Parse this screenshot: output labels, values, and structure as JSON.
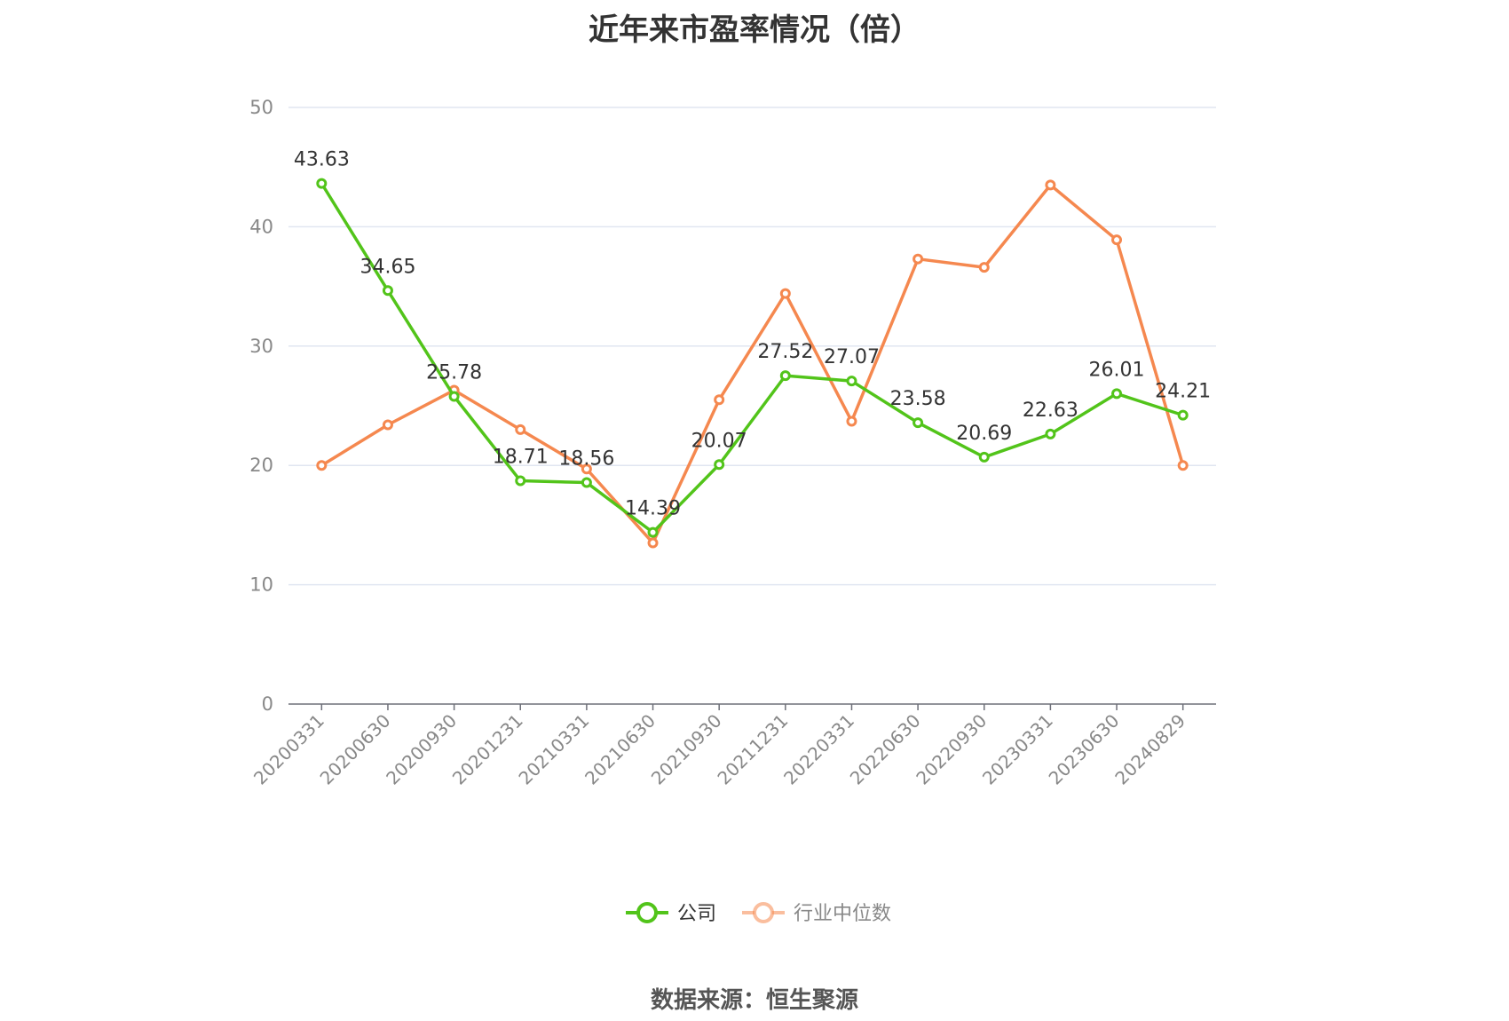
{
  "title": "近年来市盈率情况（倍）",
  "source": "数据来源：恒生聚源",
  "chart_data": {
    "type": "line",
    "categories": [
      "20200331",
      "20200630",
      "20200930",
      "20201231",
      "20210331",
      "20210630",
      "20210930",
      "20211231",
      "20220331",
      "20220630",
      "20220930",
      "20230331",
      "20230630",
      "20240829"
    ],
    "series": [
      {
        "name": "公司",
        "color": "#52c41a",
        "values": [
          43.63,
          34.65,
          25.78,
          18.71,
          18.56,
          14.39,
          20.07,
          27.52,
          27.07,
          23.58,
          20.69,
          22.63,
          26.01,
          24.21
        ],
        "labels": [
          "43.63",
          "34.65",
          "25.78",
          "18.71",
          "18.56",
          "14.39",
          "20.07",
          "27.52",
          "27.07",
          "23.58",
          "20.69",
          "22.63",
          "26.01",
          "24.21"
        ]
      },
      {
        "name": "行业中位数",
        "color": "#f5884f",
        "values": [
          20.0,
          23.4,
          26.3,
          23.0,
          19.7,
          13.5,
          25.5,
          34.4,
          23.7,
          37.3,
          36.6,
          43.5,
          38.9,
          20.0
        ]
      }
    ],
    "yticks": [
      "0",
      "10",
      "20",
      "30",
      "40",
      "50"
    ],
    "ylim": [
      0,
      50
    ],
    "grid": true,
    "legend_position": "bottom"
  }
}
